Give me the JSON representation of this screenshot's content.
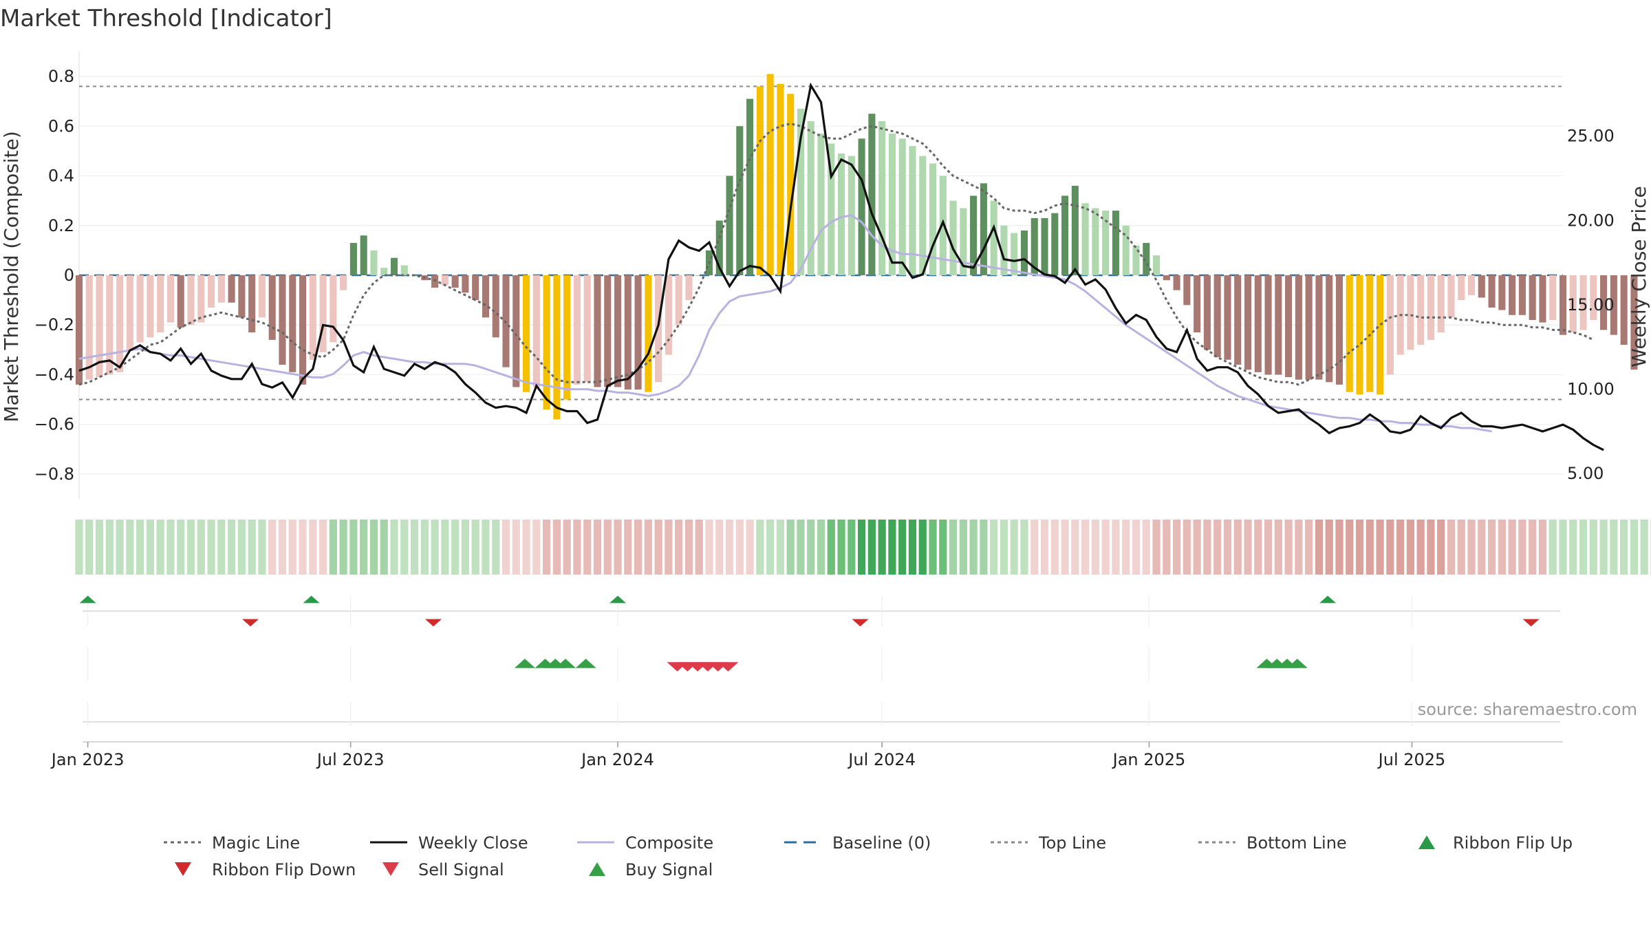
{
  "chart_data": {
    "type": "bar",
    "title": "Market Threshold [Indicator]",
    "ylabel": "Market Threshold (Composite)",
    "y2label": "Weekly Close Price",
    "ylim": [
      -0.9,
      0.9
    ],
    "y2lim": [
      3.5,
      30.0
    ],
    "yticks": [
      0.8,
      0.6,
      0.4,
      0.2,
      0,
      -0.2,
      -0.4,
      -0.6,
      -0.8
    ],
    "ytick_labels": [
      "0.8",
      "0.6",
      "0.4",
      "0.2",
      "0",
      "−0.2",
      "−0.4",
      "−0.6",
      "−0.8"
    ],
    "y2ticks": [
      25.0,
      20.0,
      15.0,
      10.0,
      5.0
    ],
    "y2tick_labels": [
      "25.00",
      "20.00",
      "15.00",
      "10.00",
      "5.00"
    ],
    "x_start": "2022-12-26",
    "x_end": "2025-10-13",
    "xticks": [
      "2023-01-01",
      "2023-07-01",
      "2024-01-01",
      "2024-07-01",
      "2025-01-01",
      "2025-07-01"
    ],
    "xtick_labels": [
      "Jan 2023",
      "Jul 2023",
      "Jan 2024",
      "Jul 2024",
      "Jan 2025",
      "Jul 2025"
    ],
    "top_line": 0.76,
    "bottom_line": -0.5,
    "grid": true,
    "legend_position": "bottom",
    "source": "source: sharemaestro.com",
    "colors": {
      "magic_line": "#666666",
      "weekly_close": "#111111",
      "composite": "#b8b2e0",
      "baseline": "#2b6e9e",
      "threshold_lines": "#888888",
      "bar_pos_strong": "#5e8f5e",
      "bar_pos_light": "#b0d8ae",
      "bar_neg_strong": "#a87872",
      "bar_neg_light": "#ecc4c0",
      "bar_extreme": "#f5c000",
      "flip_up": "#2a9a4a",
      "flip_down": "#d02a2a",
      "sell": "#dc3c4a",
      "buy": "#36a047"
    },
    "composite_bars": [
      -0.44,
      -0.42,
      -0.41,
      -0.4,
      -0.39,
      -0.3,
      -0.27,
      -0.25,
      -0.23,
      -0.19,
      -0.21,
      -0.2,
      -0.19,
      -0.13,
      -0.11,
      -0.11,
      -0.17,
      -0.23,
      -0.17,
      -0.26,
      -0.36,
      -0.39,
      -0.44,
      -0.34,
      -0.31,
      -0.27,
      -0.06,
      0.13,
      0.16,
      0.1,
      0.03,
      0.07,
      0.04,
      0,
      -0.02,
      -0.05,
      -0.04,
      -0.05,
      -0.07,
      -0.1,
      -0.17,
      -0.25,
      -0.37,
      -0.45,
      -0.47,
      -0.45,
      -0.54,
      -0.58,
      -0.5,
      -0.44,
      -0.43,
      -0.45,
      -0.45,
      -0.45,
      -0.46,
      -0.46,
      -0.47,
      -0.43,
      -0.32,
      -0.2,
      -0.1,
      0,
      0.1,
      0.22,
      0.4,
      0.6,
      0.71,
      0.76,
      0.81,
      0.77,
      0.73,
      0.67,
      0.62,
      0.57,
      0.53,
      0.49,
      0.48,
      0.55,
      0.65,
      0.62,
      0.57,
      0.55,
      0.52,
      0.48,
      0.45,
      0.4,
      0.3,
      0.27,
      0.32,
      0.37,
      0.3,
      0.2,
      0.17,
      0.18,
      0.23,
      0.23,
      0.25,
      0.32,
      0.36,
      0.29,
      0.27,
      0.26,
      0.26,
      0.2,
      0.12,
      0.13,
      0.08,
      -0.02,
      -0.06,
      -0.12,
      -0.23,
      -0.3,
      -0.33,
      -0.34,
      -0.36,
      -0.38,
      -0.39,
      -0.4,
      -0.4,
      -0.41,
      -0.42,
      -0.42,
      -0.42,
      -0.43,
      -0.44,
      -0.47,
      -0.48,
      -0.47,
      -0.48,
      -0.4,
      -0.32,
      -0.3,
      -0.28,
      -0.26,
      -0.23,
      -0.17,
      -0.1,
      -0.08,
      -0.09,
      -0.13,
      -0.14,
      -0.16,
      -0.16,
      -0.18,
      -0.19,
      -0.18,
      -0.24,
      -0.23,
      -0.22,
      -0.18,
      -0.22,
      -0.24,
      -0.28,
      -0.38
    ],
    "weekly_close": [
      11.1,
      11.3,
      11.6,
      11.7,
      11.3,
      12.3,
      12.6,
      12.2,
      12.1,
      11.7,
      12.4,
      11.5,
      12.1,
      11.1,
      10.8,
      10.6,
      10.6,
      11.5,
      10.3,
      10.1,
      10.4,
      9.5,
      10.6,
      11.2,
      13.8,
      13.7,
      12.9,
      11.4,
      11.0,
      12.5,
      11.2,
      11.0,
      10.8,
      11.5,
      11.2,
      11.6,
      11.4,
      11.0,
      10.3,
      9.8,
      9.2,
      8.9,
      9.0,
      8.9,
      8.6,
      10.2,
      9.4,
      8.9,
      8.7,
      8.7,
      8.0,
      8.2,
      10.2,
      10.5,
      10.6,
      11.2,
      12.1,
      13.8,
      17.7,
      18.8,
      18.4,
      18.2,
      18.7,
      17.2,
      16.1,
      17.0,
      17.3,
      17.2,
      16.7,
      15.8,
      20.7,
      24.9,
      28.0,
      27.0,
      22.6,
      23.6,
      23.3,
      22.4,
      20.4,
      19.0,
      17.5,
      17.5,
      16.6,
      16.8,
      18.5,
      19.9,
      18.3,
      17.3,
      17.2,
      18.3,
      19.6,
      17.7,
      17.6,
      17.7,
      17.2,
      16.8,
      16.7,
      16.3,
      17.1,
      16.2,
      16.5,
      15.9,
      14.8,
      13.9,
      14.4,
      14.1,
      13.1,
      12.4,
      12.2,
      13.5,
      11.8,
      11.1,
      11.3,
      11.3,
      11.0,
      10.2,
      9.7,
      9.0,
      8.6,
      8.7,
      8.8,
      8.3,
      7.9,
      7.4,
      7.7,
      7.8,
      8.0,
      8.5,
      8.1,
      7.5,
      7.4,
      7.6,
      8.4,
      8.0,
      7.7,
      8.3,
      8.6,
      8.1,
      7.8,
      7.8,
      7.7,
      7.8,
      7.9,
      7.7,
      7.5,
      7.7,
      7.9,
      7.6,
      7.1,
      6.7,
      6.4
    ],
    "composite_line": [
      11.8,
      11.9,
      12.0,
      12.1,
      12.2,
      12.3,
      12.4,
      12.2,
      12.1,
      12.0,
      12.0,
      11.9,
      11.8,
      11.7,
      11.6,
      11.5,
      11.4,
      11.3,
      11.2,
      11.1,
      11.0,
      10.9,
      10.8,
      10.7,
      10.7,
      10.9,
      11.4,
      12.0,
      12.2,
      12.0,
      11.9,
      11.8,
      11.7,
      11.6,
      11.6,
      11.5,
      11.5,
      11.5,
      11.5,
      11.4,
      11.2,
      11.0,
      10.8,
      10.6,
      10.4,
      10.3,
      10.2,
      10.1,
      10.0,
      10.0,
      10.0,
      9.9,
      9.9,
      9.8,
      9.8,
      9.7,
      9.6,
      9.7,
      9.9,
      10.2,
      10.8,
      12.0,
      13.5,
      14.5,
      15.2,
      15.5,
      15.6,
      15.7,
      15.8,
      16.0,
      16.3,
      17.1,
      18.3,
      19.4,
      19.9,
      20.2,
      20.3,
      19.9,
      19.1,
      18.5,
      18.2,
      18.0,
      18.0,
      17.9,
      17.8,
      17.7,
      17.6,
      17.5,
      17.4,
      17.3,
      17.2,
      17.1,
      17.0,
      16.9,
      16.8,
      16.7,
      16.6,
      16.5,
      16.2,
      15.8,
      15.3,
      14.8,
      14.3,
      13.8,
      13.4,
      13.0,
      12.6,
      12.2,
      11.8,
      11.4,
      11.0,
      10.6,
      10.2,
      9.9,
      9.6,
      9.4,
      9.2,
      9.0,
      8.9,
      8.8,
      8.7,
      8.6,
      8.5,
      8.4,
      8.3,
      8.3,
      8.2,
      8.2,
      8.1,
      8.1,
      8.0,
      8.0,
      7.9,
      7.9,
      7.8,
      7.8,
      7.7,
      7.7,
      7.6,
      7.5
    ],
    "magic_line": [
      -0.44,
      -0.43,
      -0.41,
      -0.39,
      -0.37,
      -0.34,
      -0.31,
      -0.28,
      -0.27,
      -0.24,
      -0.21,
      -0.19,
      -0.17,
      -0.16,
      -0.15,
      -0.16,
      -0.17,
      -0.18,
      -0.19,
      -0.21,
      -0.23,
      -0.27,
      -0.3,
      -0.32,
      -0.33,
      -0.3,
      -0.26,
      -0.16,
      -0.08,
      -0.03,
      0.0,
      0.0,
      0.0,
      0.0,
      -0.01,
      -0.02,
      -0.04,
      -0.06,
      -0.08,
      -0.1,
      -0.12,
      -0.15,
      -0.19,
      -0.24,
      -0.29,
      -0.33,
      -0.38,
      -0.42,
      -0.43,
      -0.43,
      -0.43,
      -0.43,
      -0.42,
      -0.41,
      -0.4,
      -0.38,
      -0.35,
      -0.31,
      -0.26,
      -0.2,
      -0.13,
      -0.05,
      0.05,
      0.15,
      0.27,
      0.38,
      0.47,
      0.54,
      0.58,
      0.6,
      0.61,
      0.6,
      0.58,
      0.56,
      0.55,
      0.55,
      0.57,
      0.59,
      0.6,
      0.59,
      0.58,
      0.57,
      0.55,
      0.53,
      0.49,
      0.44,
      0.4,
      0.38,
      0.36,
      0.34,
      0.31,
      0.27,
      0.26,
      0.26,
      0.25,
      0.26,
      0.28,
      0.29,
      0.28,
      0.27,
      0.25,
      0.22,
      0.19,
      0.16,
      0.11,
      0.05,
      -0.02,
      -0.1,
      -0.17,
      -0.23,
      -0.27,
      -0.3,
      -0.33,
      -0.35,
      -0.37,
      -0.39,
      -0.41,
      -0.42,
      -0.43,
      -0.43,
      -0.44,
      -0.42,
      -0.4,
      -0.38,
      -0.35,
      -0.31,
      -0.28,
      -0.24,
      -0.2,
      -0.17,
      -0.16,
      -0.16,
      -0.17,
      -0.17,
      -0.17,
      -0.17,
      -0.18,
      -0.18,
      -0.19,
      -0.19,
      -0.2,
      -0.2,
      -0.2,
      -0.21,
      -0.21,
      -0.22,
      -0.22,
      -0.23,
      -0.24,
      -0.26
    ],
    "ribbon": [
      1,
      1,
      1,
      1,
      1,
      1,
      1,
      1,
      1,
      1,
      1,
      1,
      1,
      1,
      1,
      1,
      1,
      1,
      1,
      -1,
      -1,
      -1,
      -1,
      -1,
      -1,
      2,
      2,
      2,
      2,
      2,
      2,
      1,
      1,
      1,
      1,
      1,
      1,
      1,
      1,
      1,
      1,
      1,
      -1,
      -1,
      -1,
      -1,
      -2,
      -2,
      -2,
      -2,
      -2,
      -2,
      -2,
      -2,
      -2,
      -2,
      -2,
      -2,
      -2,
      -2,
      -2,
      -2,
      -1,
      -1,
      -1,
      -1,
      -1,
      1,
      1,
      1,
      2,
      2,
      2,
      2,
      3,
      3,
      3,
      4,
      4,
      4,
      4,
      4,
      4,
      4,
      3,
      3,
      2,
      2,
      2,
      2,
      1,
      1,
      1,
      1,
      -1,
      -1,
      -1,
      -1,
      -1,
      -1,
      -1,
      -1,
      -1,
      -1,
      -1,
      -1,
      -2,
      -2,
      -2,
      -2,
      -2,
      -2,
      -2,
      -2,
      -2,
      -2,
      -2,
      -2,
      -2,
      -2,
      -2,
      -2,
      -3,
      -3,
      -3,
      -3,
      -3,
      -3,
      -3,
      -3,
      -3,
      -3,
      -3,
      -3,
      -3,
      -2,
      -2,
      -2,
      -2,
      -2,
      -2,
      -2,
      -2,
      -2,
      -2,
      1,
      1,
      1,
      1,
      1,
      1,
      1,
      1,
      1,
      1,
      1,
      1,
      1,
      1,
      1,
      1,
      1,
      1,
      -1,
      -1,
      -1
    ],
    "events": {
      "ribbon_flip_up": [
        "2023-01-01",
        "2023-06-04",
        "2024-01-01",
        "2025-05-04"
      ],
      "ribbon_flip_down": [
        "2023-04-23",
        "2023-08-27",
        "2024-06-16",
        "2025-09-21"
      ],
      "buy_signal": [
        "2023-10-29",
        "2023-11-12",
        "2023-11-19",
        "2023-11-26",
        "2023-12-10",
        "2025-03-23",
        "2025-03-30",
        "2025-04-06",
        "2025-04-13"
      ],
      "sell_signal": [
        "2024-02-11",
        "2024-02-18",
        "2024-02-25",
        "2024-03-03",
        "2024-03-10",
        "2024-03-17"
      ]
    },
    "series": [
      {
        "name": "Magic Line"
      },
      {
        "name": "Weekly Close"
      },
      {
        "name": "Composite"
      },
      {
        "name": "Baseline (0)"
      },
      {
        "name": "Top Line"
      },
      {
        "name": "Bottom Line"
      },
      {
        "name": "Ribbon Flip Up"
      },
      {
        "name": "Ribbon Flip Down"
      },
      {
        "name": "Sell Signal"
      },
      {
        "name": "Buy Signal"
      }
    ]
  }
}
